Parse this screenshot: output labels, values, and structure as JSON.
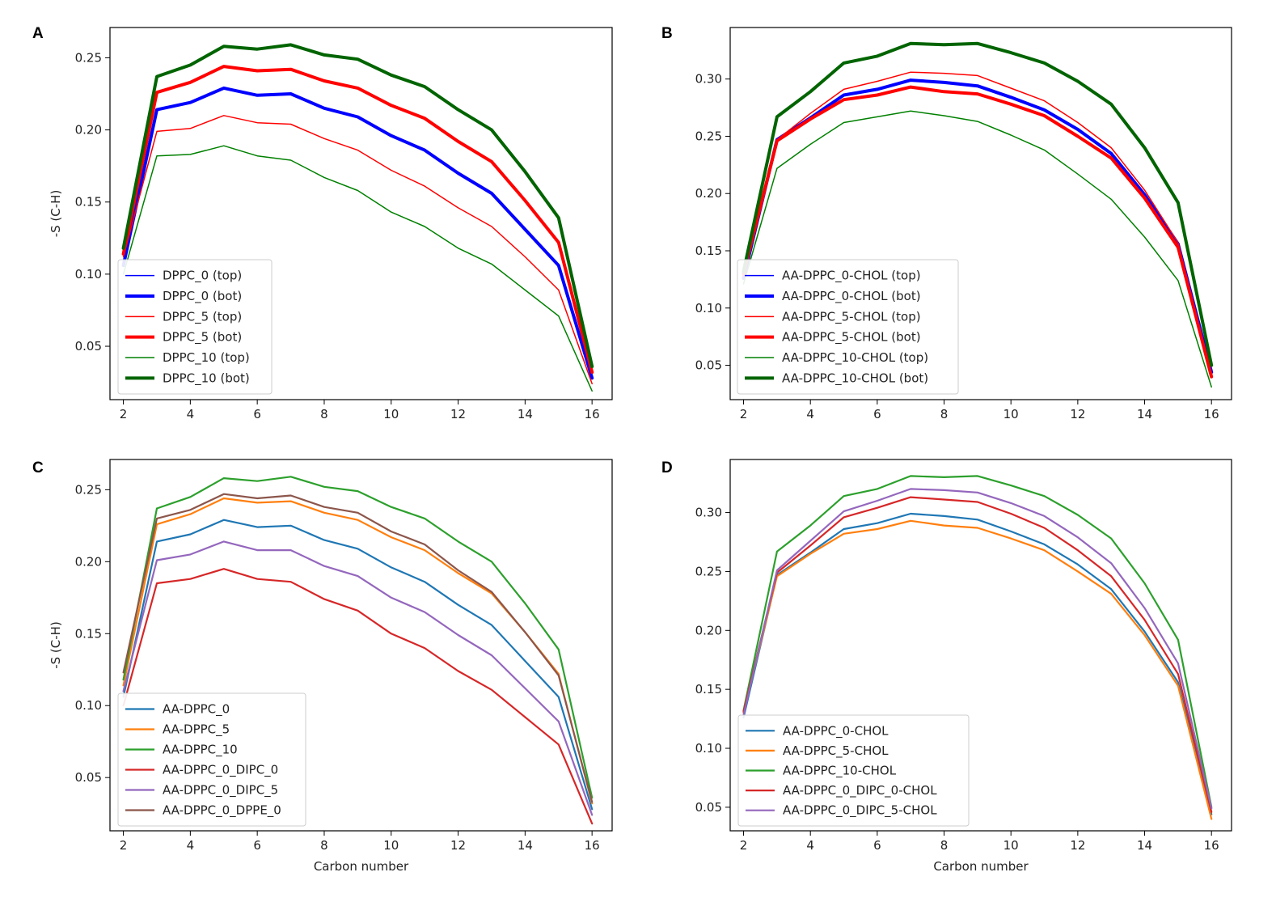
{
  "chart_data": [
    {
      "panel": "A",
      "type": "line",
      "ylabel": "-S (C-H)",
      "xlabel": "",
      "xlim": [
        1.6,
        16.6
      ],
      "ylim": [
        0.013,
        0.271
      ],
      "xticks": [
        2,
        4,
        6,
        8,
        10,
        12,
        14,
        16
      ],
      "yticks": [
        0.05,
        0.1,
        0.15,
        0.2,
        0.25
      ],
      "ytick_labels": [
        "0.05",
        "0.10",
        "0.15",
        "0.20",
        "0.25"
      ],
      "legend_position": "lower-left",
      "x": [
        2,
        3,
        4,
        5,
        6,
        7,
        8,
        9,
        10,
        11,
        12,
        13,
        14,
        15,
        16
      ],
      "series": [
        {
          "name": "DPPC_0 (top)",
          "color": "#0000ff",
          "width": 1.5,
          "values": [
            0.106,
            0.214,
            0.219,
            0.229,
            0.224,
            0.225,
            0.215,
            0.209,
            0.196,
            0.186,
            0.17,
            0.156,
            0.131,
            0.106,
            0.028
          ]
        },
        {
          "name": "DPPC_0 (bot)",
          "color": "#0000ff",
          "width": 4,
          "values": [
            0.106,
            0.214,
            0.219,
            0.229,
            0.224,
            0.225,
            0.215,
            0.209,
            0.196,
            0.186,
            0.17,
            0.156,
            0.131,
            0.106,
            0.028
          ]
        },
        {
          "name": "DPPC_5 (top)",
          "color": "#ff0000",
          "width": 1.5,
          "values": [
            0.112,
            0.199,
            0.201,
            0.21,
            0.205,
            0.204,
            0.194,
            0.186,
            0.172,
            0.161,
            0.146,
            0.133,
            0.112,
            0.089,
            0.024
          ]
        },
        {
          "name": "DPPC_5 (bot)",
          "color": "#ff0000",
          "width": 4,
          "values": [
            0.114,
            0.226,
            0.233,
            0.244,
            0.241,
            0.242,
            0.234,
            0.229,
            0.217,
            0.208,
            0.192,
            0.178,
            0.151,
            0.122,
            0.032
          ]
        },
        {
          "name": "DPPC_10 (top)",
          "color": "#008000",
          "width": 1.5,
          "values": [
            0.1,
            0.182,
            0.183,
            0.189,
            0.182,
            0.179,
            0.167,
            0.158,
            0.143,
            0.133,
            0.118,
            0.107,
            0.089,
            0.071,
            0.019
          ]
        },
        {
          "name": "DPPC_10 (bot)",
          "color": "#006400",
          "width": 4,
          "values": [
            0.118,
            0.237,
            0.245,
            0.258,
            0.256,
            0.259,
            0.252,
            0.249,
            0.238,
            0.23,
            0.214,
            0.2,
            0.171,
            0.139,
            0.036
          ]
        }
      ]
    },
    {
      "panel": "B",
      "type": "line",
      "ylabel": "",
      "xlabel": "",
      "xlim": [
        1.6,
        16.6
      ],
      "ylim": [
        0.02,
        0.345
      ],
      "xticks": [
        2,
        4,
        6,
        8,
        10,
        12,
        14,
        16
      ],
      "yticks": [
        0.05,
        0.1,
        0.15,
        0.2,
        0.25,
        0.3
      ],
      "ytick_labels": [
        "0.05",
        "0.10",
        "0.15",
        "0.20",
        "0.25",
        "0.30"
      ],
      "legend_position": "lower-left",
      "x": [
        2,
        3,
        4,
        5,
        6,
        7,
        8,
        9,
        10,
        11,
        12,
        13,
        14,
        15,
        16
      ],
      "series": [
        {
          "name": "AA-DPPC_0-CHOL (top)",
          "color": "#0000ff",
          "width": 1.5,
          "values": [
            0.126,
            0.247,
            0.266,
            0.286,
            0.291,
            0.299,
            0.297,
            0.294,
            0.284,
            0.273,
            0.256,
            0.235,
            0.199,
            0.156,
            0.044
          ]
        },
        {
          "name": "AA-DPPC_0-CHOL (bot)",
          "color": "#0000ff",
          "width": 4,
          "values": [
            0.126,
            0.247,
            0.266,
            0.286,
            0.291,
            0.299,
            0.297,
            0.294,
            0.284,
            0.273,
            0.256,
            0.235,
            0.199,
            0.156,
            0.044
          ]
        },
        {
          "name": "AA-DPPC_5-CHOL (top)",
          "color": "#ff0000",
          "width": 1.5,
          "values": [
            0.128,
            0.247,
            0.27,
            0.291,
            0.298,
            0.306,
            0.305,
            0.303,
            0.292,
            0.281,
            0.262,
            0.24,
            0.203,
            0.157,
            0.042
          ]
        },
        {
          "name": "AA-DPPC_5-CHOL (bot)",
          "color": "#ff0000",
          "width": 4,
          "values": [
            0.13,
            0.246,
            0.265,
            0.282,
            0.286,
            0.293,
            0.289,
            0.287,
            0.278,
            0.268,
            0.25,
            0.231,
            0.196,
            0.153,
            0.04
          ]
        },
        {
          "name": "AA-DPPC_10-CHOL (top)",
          "color": "#008000",
          "width": 1.5,
          "values": [
            0.121,
            0.222,
            0.243,
            0.262,
            0.267,
            0.272,
            0.268,
            0.263,
            0.251,
            0.238,
            0.217,
            0.195,
            0.162,
            0.124,
            0.031
          ]
        },
        {
          "name": "AA-DPPC_10-CHOL (bot)",
          "color": "#006400",
          "width": 4,
          "values": [
            0.132,
            0.267,
            0.289,
            0.314,
            0.32,
            0.331,
            0.33,
            0.331,
            0.323,
            0.314,
            0.298,
            0.278,
            0.24,
            0.192,
            0.05
          ]
        }
      ]
    },
    {
      "panel": "C",
      "type": "line",
      "ylabel": "-S (C-H)",
      "xlabel": "Carbon number",
      "xlim": [
        1.6,
        16.6
      ],
      "ylim": [
        0.013,
        0.271
      ],
      "xticks": [
        2,
        4,
        6,
        8,
        10,
        12,
        14,
        16
      ],
      "yticks": [
        0.05,
        0.1,
        0.15,
        0.2,
        0.25
      ],
      "ytick_labels": [
        "0.05",
        "0.10",
        "0.15",
        "0.20",
        "0.25"
      ],
      "legend_position": "lower-left",
      "x": [
        2,
        3,
        4,
        5,
        6,
        7,
        8,
        9,
        10,
        11,
        12,
        13,
        14,
        15,
        16
      ],
      "series": [
        {
          "name": "AA-DPPC_0",
          "color": "#1f77b4",
          "width": 2.2,
          "values": [
            0.106,
            0.214,
            0.219,
            0.229,
            0.224,
            0.225,
            0.215,
            0.209,
            0.196,
            0.186,
            0.17,
            0.156,
            0.131,
            0.106,
            0.028
          ]
        },
        {
          "name": "AA-DPPC_5",
          "color": "#ff7f0e",
          "width": 2.2,
          "values": [
            0.114,
            0.226,
            0.233,
            0.244,
            0.241,
            0.242,
            0.234,
            0.229,
            0.217,
            0.208,
            0.192,
            0.178,
            0.151,
            0.122,
            0.032
          ]
        },
        {
          "name": "AA-DPPC_10",
          "color": "#2ca02c",
          "width": 2.2,
          "values": [
            0.118,
            0.237,
            0.245,
            0.258,
            0.256,
            0.259,
            0.252,
            0.249,
            0.238,
            0.23,
            0.214,
            0.2,
            0.171,
            0.139,
            0.036
          ]
        },
        {
          "name": "AA-DPPC_0_DIPC_0",
          "color": "#d62728",
          "width": 2.2,
          "values": [
            0.1,
            0.185,
            0.188,
            0.195,
            0.188,
            0.186,
            0.174,
            0.166,
            0.15,
            0.14,
            0.124,
            0.111,
            0.092,
            0.073,
            0.018
          ]
        },
        {
          "name": "AA-DPPC_0_DIPC_5",
          "color": "#9467bd",
          "width": 2.2,
          "values": [
            0.11,
            0.201,
            0.205,
            0.214,
            0.208,
            0.208,
            0.197,
            0.19,
            0.175,
            0.165,
            0.149,
            0.135,
            0.112,
            0.089,
            0.024
          ]
        },
        {
          "name": "AA-DPPC_0_DPPE_0",
          "color": "#8c564b",
          "width": 2.2,
          "values": [
            0.123,
            0.23,
            0.236,
            0.247,
            0.244,
            0.246,
            0.238,
            0.234,
            0.221,
            0.212,
            0.194,
            0.179,
            0.151,
            0.121,
            0.033
          ]
        }
      ]
    },
    {
      "panel": "D",
      "type": "line",
      "ylabel": "",
      "xlabel": "Carbon number",
      "xlim": [
        1.6,
        16.6
      ],
      "ylim": [
        0.03,
        0.345
      ],
      "xticks": [
        2,
        4,
        6,
        8,
        10,
        12,
        14,
        16
      ],
      "yticks": [
        0.05,
        0.1,
        0.15,
        0.2,
        0.25,
        0.3
      ],
      "ytick_labels": [
        "0.05",
        "0.10",
        "0.15",
        "0.20",
        "0.25",
        "0.30"
      ],
      "legend_position": "lower-left",
      "x": [
        2,
        3,
        4,
        5,
        6,
        7,
        8,
        9,
        10,
        11,
        12,
        13,
        14,
        15,
        16
      ],
      "series": [
        {
          "name": "AA-DPPC_0-CHOL",
          "color": "#1f77b4",
          "width": 2.2,
          "values": [
            0.126,
            0.247,
            0.266,
            0.286,
            0.291,
            0.299,
            0.297,
            0.294,
            0.284,
            0.273,
            0.256,
            0.235,
            0.199,
            0.156,
            0.044
          ]
        },
        {
          "name": "AA-DPPC_5-CHOL",
          "color": "#ff7f0e",
          "width": 2.2,
          "values": [
            0.13,
            0.246,
            0.265,
            0.282,
            0.286,
            0.293,
            0.289,
            0.287,
            0.278,
            0.268,
            0.25,
            0.231,
            0.196,
            0.153,
            0.04
          ]
        },
        {
          "name": "AA-DPPC_10-CHOL",
          "color": "#2ca02c",
          "width": 2.2,
          "values": [
            0.132,
            0.267,
            0.289,
            0.314,
            0.32,
            0.331,
            0.33,
            0.331,
            0.323,
            0.314,
            0.298,
            0.278,
            0.24,
            0.192,
            0.05
          ]
        },
        {
          "name": "AA-DPPC_0_DIPC_0-CHOL",
          "color": "#d62728",
          "width": 2.2,
          "values": [
            0.131,
            0.249,
            0.272,
            0.296,
            0.304,
            0.313,
            0.311,
            0.309,
            0.299,
            0.287,
            0.268,
            0.246,
            0.209,
            0.163,
            0.046
          ]
        },
        {
          "name": "AA-DPPC_0_DIPC_5-CHOL",
          "color": "#9467bd",
          "width": 2.2,
          "values": [
            0.128,
            0.251,
            0.276,
            0.301,
            0.31,
            0.32,
            0.319,
            0.317,
            0.308,
            0.297,
            0.279,
            0.257,
            0.219,
            0.172,
            0.049
          ]
        }
      ]
    }
  ]
}
